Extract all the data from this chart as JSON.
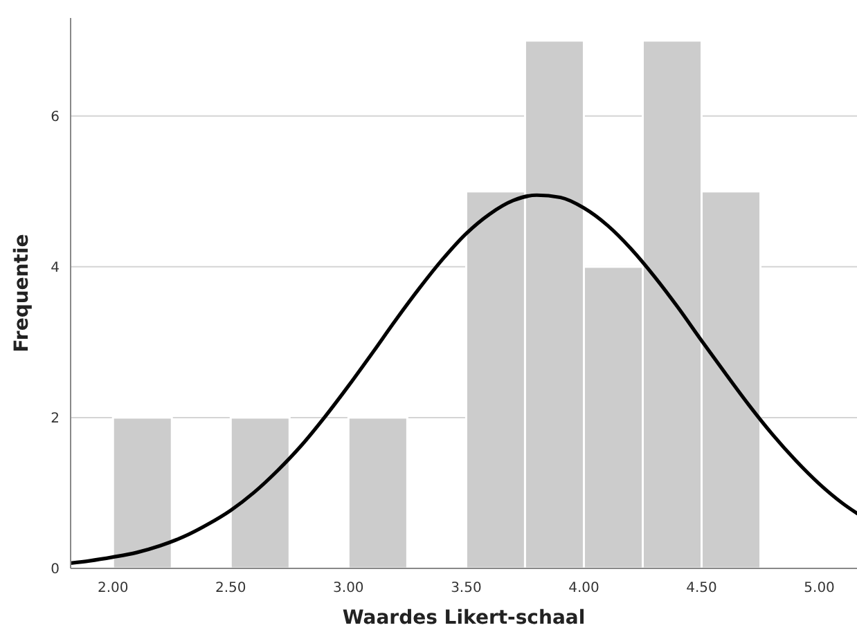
{
  "chart_data": {
    "type": "histogram",
    "xlabel": "Waardes Likert-schaal",
    "ylabel": "Frequentie",
    "xlim": [
      1.82,
      5.16
    ],
    "ylim": [
      0,
      7.3
    ],
    "xticks": [
      {
        "value": 2,
        "label": "2.00"
      },
      {
        "value": 2.5,
        "label": "2.50"
      },
      {
        "value": 3,
        "label": "3.00"
      },
      {
        "value": 3.5,
        "label": "3.50"
      },
      {
        "value": 4,
        "label": "4.00"
      },
      {
        "value": 4.5,
        "label": "4.50"
      },
      {
        "value": 5,
        "label": "5.00"
      }
    ],
    "yticks": [
      0,
      2,
      4,
      6
    ],
    "grid": "y",
    "series": [
      {
        "color": "#cccccc",
        "bins": [
          2,
          2.25,
          2.5,
          2.75,
          3,
          3.25,
          3.5,
          3.75,
          4,
          4.25,
          4.5,
          4.75
        ],
        "values": [
          2,
          0,
          2,
          0,
          2,
          0,
          5,
          7,
          4,
          7,
          5
        ]
      },
      {
        "type": "line",
        "color": "#000000",
        "x": [
          1.82,
          1.9,
          2.0,
          2.1,
          2.2,
          2.3,
          2.4,
          2.5,
          2.6,
          2.7,
          2.8,
          2.9,
          3.0,
          3.1,
          3.2,
          3.3,
          3.4,
          3.5,
          3.6,
          3.7,
          3.8,
          3.9,
          4.0,
          4.1,
          4.2,
          4.3,
          4.4,
          4.5,
          4.6,
          4.7,
          4.8,
          4.9,
          5.0,
          5.1,
          5.16
        ],
        "values": [
          0.07,
          0.1,
          0.15,
          0.21,
          0.3,
          0.42,
          0.58,
          0.77,
          1.01,
          1.3,
          1.63,
          2.01,
          2.42,
          2.85,
          3.29,
          3.71,
          4.1,
          4.44,
          4.7,
          4.88,
          4.95,
          4.92,
          4.78,
          4.55,
          4.24,
          3.87,
          3.46,
          3.02,
          2.59,
          2.17,
          1.78,
          1.43,
          1.12,
          0.86,
          0.73
        ]
      }
    ]
  }
}
